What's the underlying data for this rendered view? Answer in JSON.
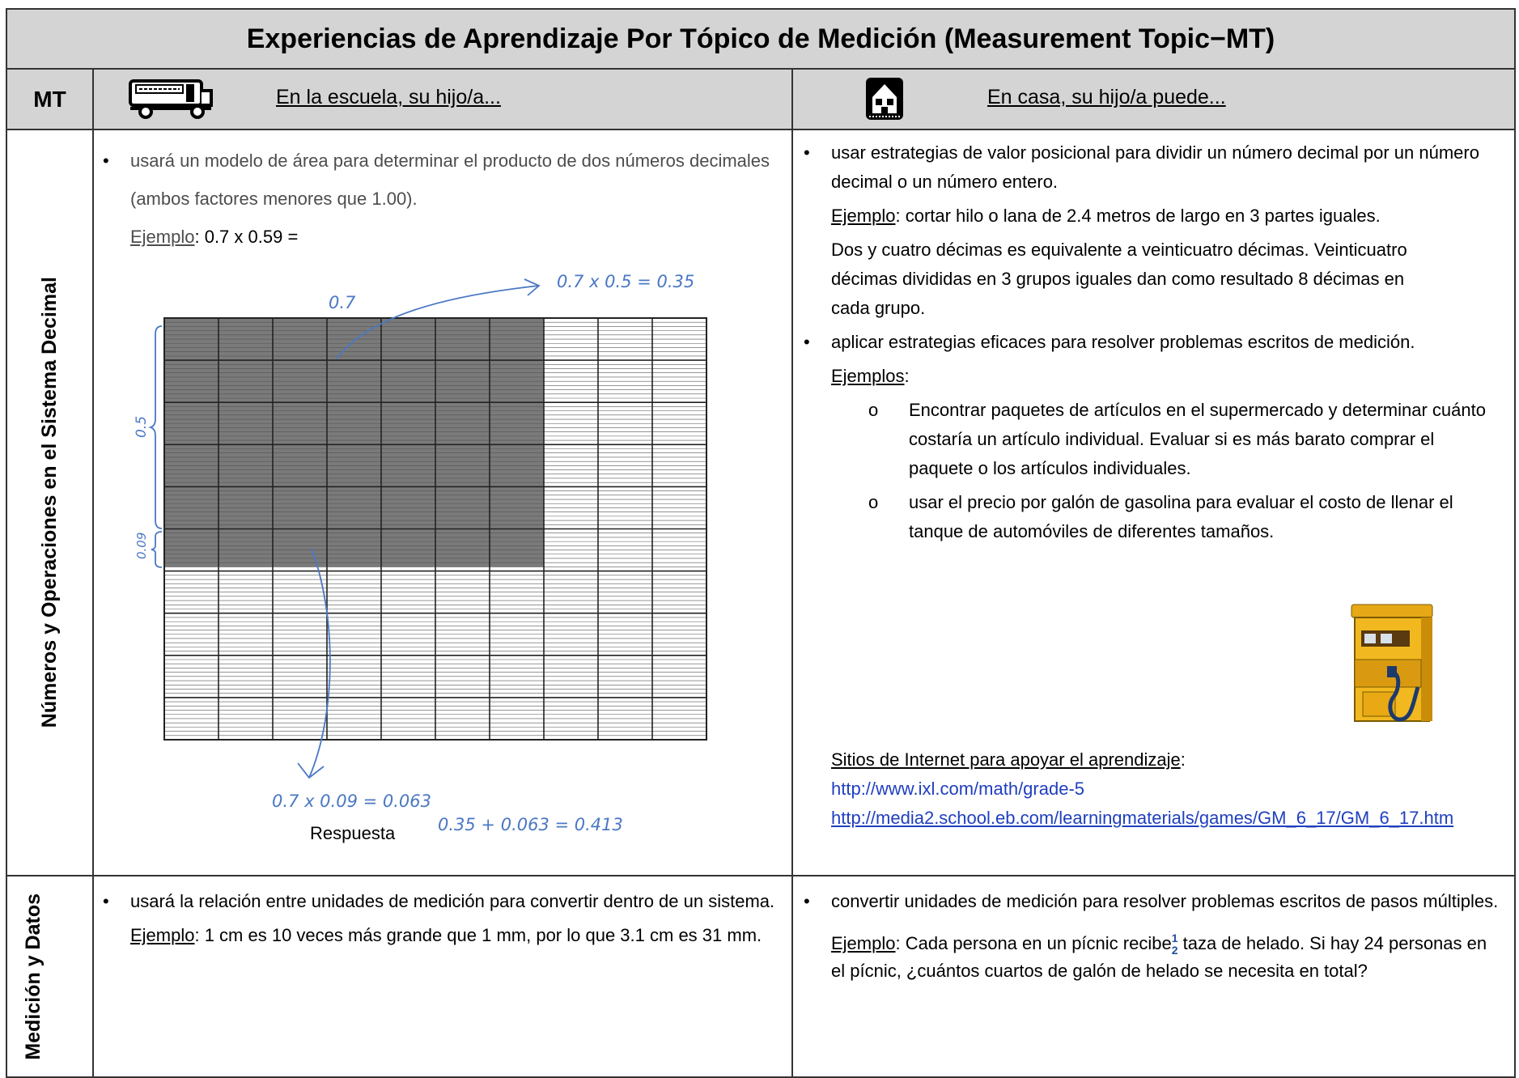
{
  "title": "Experiencias de Aprendizaje Por Tópico de Medición (Measurement Topic−MT)",
  "header": {
    "mt": "MT",
    "school": "En la escuela, su hijo/a...",
    "home": "En casa, su hijo/a puede..."
  },
  "rows": [
    {
      "topic": "Números y Operaciones en el Sistema Decimal",
      "school": {
        "bullet": "usará un modelo de área para determinar el producto de dos números decimales (ambos factores menores que 1.00).",
        "example_label": "Ejemplo",
        "example_text": ":  0.7 x 0.59 =",
        "figure": {
          "top_label": "0.7",
          "side_label_1": "0.5",
          "side_label_2": "0.09",
          "note_1": "0.7 x 0.5 = 0.35",
          "note_2": "0.7 x 0.09 = 0.063",
          "answer_label": "Respuesta",
          "answer": "0.35 + 0.063 = 0.413"
        }
      },
      "home": {
        "bullet_1": "usar estrategias de valor posicional para dividir un número decimal por un número decimal o un número entero.",
        "example_label": "Ejemplo",
        "example_text": ": cortar hilo o lana de 2.4 metros de largo en 3 partes iguales.",
        "explanation": "Dos y cuatro décimas es equivalente a veinticuatro décimas. Veinticuatro décimas divididas en 3 grupos iguales dan como resultado 8 décimas en cada grupo.",
        "bullet_2": "aplicar estrategias eficaces para resolver problemas escritos de medición.",
        "examples_label": "Ejemplos",
        "examples_colon": ":",
        "sub_items": [
          "Encontrar paquetes de artículos en el supermercado y determinar cuánto costaría un artículo individual.  Evaluar si es más barato comprar el paquete o los artículos individuales.",
          "usar el precio por galón de gasolina para evaluar el costo de llenar el tanque de automóviles de diferentes tamaños."
        ],
        "sites_label": "Sitios de Internet para apoyar el aprendizaje",
        "sites_colon": ":",
        "links": [
          "http://www.ixl.com/math/grade-5",
          "http://media2.school.eb.com/learningmaterials/games/GM_6_17/GM_6_17.htm"
        ]
      }
    },
    {
      "topic": "Medición y Datos",
      "school": {
        "bullet": "usará la relación entre unidades de medición para convertir dentro de un sistema.",
        "example_label": "Ejemplo",
        "example_text": ": 1 cm es 10 veces más grande que 1 mm, por lo que 3.1 cm es 31 mm."
      },
      "home": {
        "bullet": "convertir unidades de medición para resolver problemas escritos de pasos múltiples.",
        "example_label": "Ejemplo",
        "example_text_1": ": Cada persona en un pícnic recibe",
        "fraction_numerator": "1",
        "fraction_denominator": "2",
        "example_text_2": " taza de helado.  Si hay 24 personas en el pícnic, ¿cuántos cuartos de galón de helado se necesita en total?"
      }
    }
  ]
}
